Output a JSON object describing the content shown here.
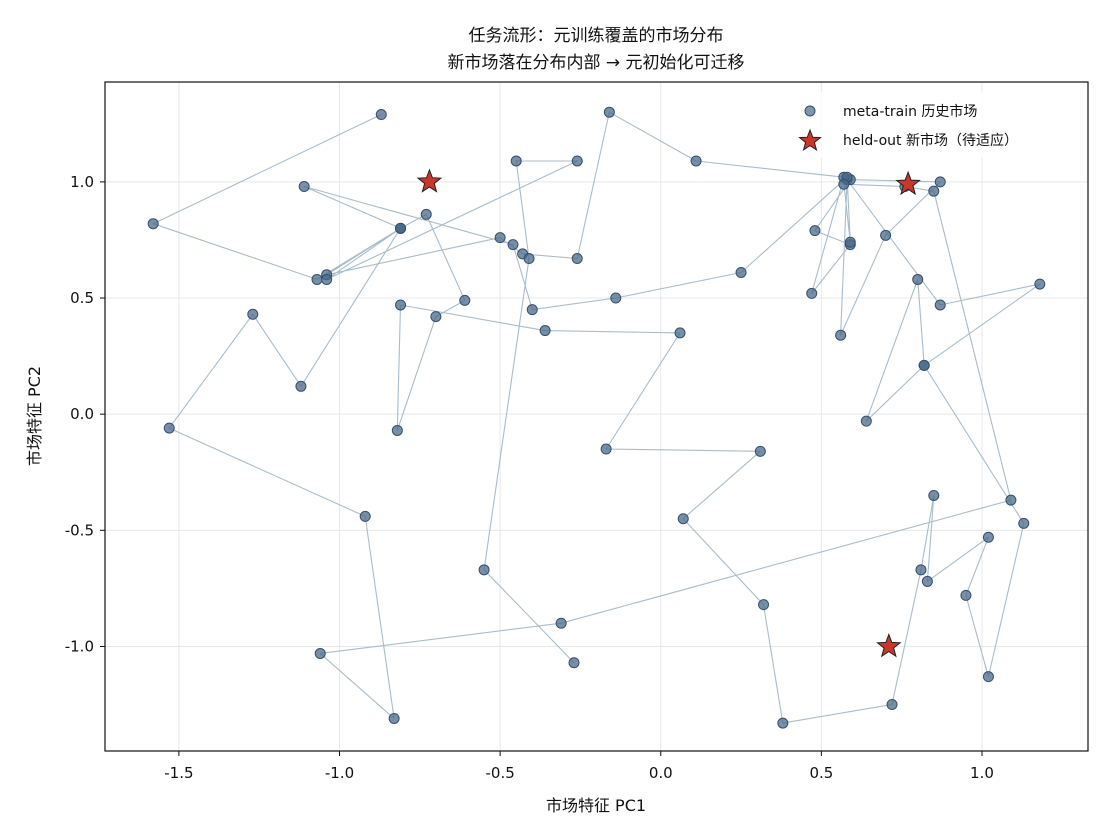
{
  "chart_data": {
    "type": "scatter",
    "title": "任务流形：元训练覆盖的市场分布",
    "subtitle": "新市场落在分布内部 → 元初始化可迁移",
    "xlabel": "市场特征 PC1",
    "ylabel": "市场特征 PC2",
    "xlim": [
      -1.73,
      1.33
    ],
    "ylim": [
      -1.45,
      1.43
    ],
    "xticks": [
      -1.5,
      -1.0,
      -0.5,
      0.0,
      0.5,
      1.0
    ],
    "xtick_labels": [
      "-1.5",
      "-1.0",
      "-0.5",
      "0.0",
      "0.5",
      "1.0"
    ],
    "yticks": [
      -1.0,
      -0.5,
      0.0,
      0.5,
      1.0
    ],
    "ytick_labels": [
      "-1.0",
      "-0.5",
      "0.0",
      "0.5",
      "1.0"
    ],
    "grid": true,
    "legend_position": "top-right",
    "series": [
      {
        "name": "meta-train 历史市场",
        "marker": "circle",
        "color": "#4a6a8a",
        "line_color": "#a9bccb",
        "connected": true,
        "x": [
          -0.87,
          -1.58,
          -1.07,
          -0.81,
          -0.73,
          -0.61,
          -0.7,
          -0.82,
          -0.81,
          -0.36,
          0.06,
          -0.17,
          0.31,
          0.07,
          0.32,
          0.38,
          0.72,
          0.81,
          0.85,
          0.83,
          1.02,
          0.95,
          1.02,
          1.13,
          0.82,
          0.8,
          0.64,
          0.82,
          1.18,
          0.87,
          0.58,
          0.56,
          0.7,
          0.87,
          0.59,
          0.48,
          0.59,
          0.47,
          0.57,
          0.11,
          -0.16,
          -0.26,
          -0.43,
          -0.5,
          -1.04,
          -0.81,
          -1.11,
          -0.46,
          -0.4,
          -0.14,
          0.25,
          0.58,
          0.59,
          0.57,
          0.76,
          0.85,
          1.09,
          -0.31,
          -1.06,
          -0.83,
          -0.92,
          -1.53,
          -1.27,
          -1.12,
          -0.81,
          -1.04,
          -0.26,
          -0.45,
          -0.41,
          -0.55,
          -0.27
        ],
        "y": [
          1.29,
          0.82,
          0.58,
          0.8,
          0.86,
          0.49,
          0.42,
          -0.07,
          0.47,
          0.36,
          0.35,
          -0.15,
          -0.16,
          -0.45,
          -0.82,
          -1.33,
          -1.25,
          -0.67,
          -0.35,
          -0.72,
          -0.53,
          -0.78,
          -1.13,
          -0.47,
          0.21,
          0.58,
          -0.03,
          0.21,
          0.56,
          0.47,
          1.01,
          0.34,
          0.77,
          1.0,
          1.01,
          0.79,
          0.73,
          0.52,
          1.02,
          1.09,
          1.3,
          0.67,
          0.69,
          0.76,
          0.6,
          0.8,
          0.98,
          0.73,
          0.45,
          0.5,
          0.61,
          1.02,
          0.74,
          0.99,
          0.98,
          0.96,
          -0.37,
          -0.9,
          -1.03,
          -1.31,
          -0.44,
          -0.06,
          0.43,
          0.12,
          0.8,
          0.58,
          1.09,
          1.09,
          0.67,
          -0.67,
          -1.07
        ]
      },
      {
        "name": "held-out 新市场（待适应）",
        "marker": "star",
        "color": "#c8372a",
        "connected": false,
        "x": [
          -0.72,
          0.77,
          0.71
        ],
        "y": [
          1.0,
          0.99,
          -1.0
        ]
      }
    ]
  }
}
